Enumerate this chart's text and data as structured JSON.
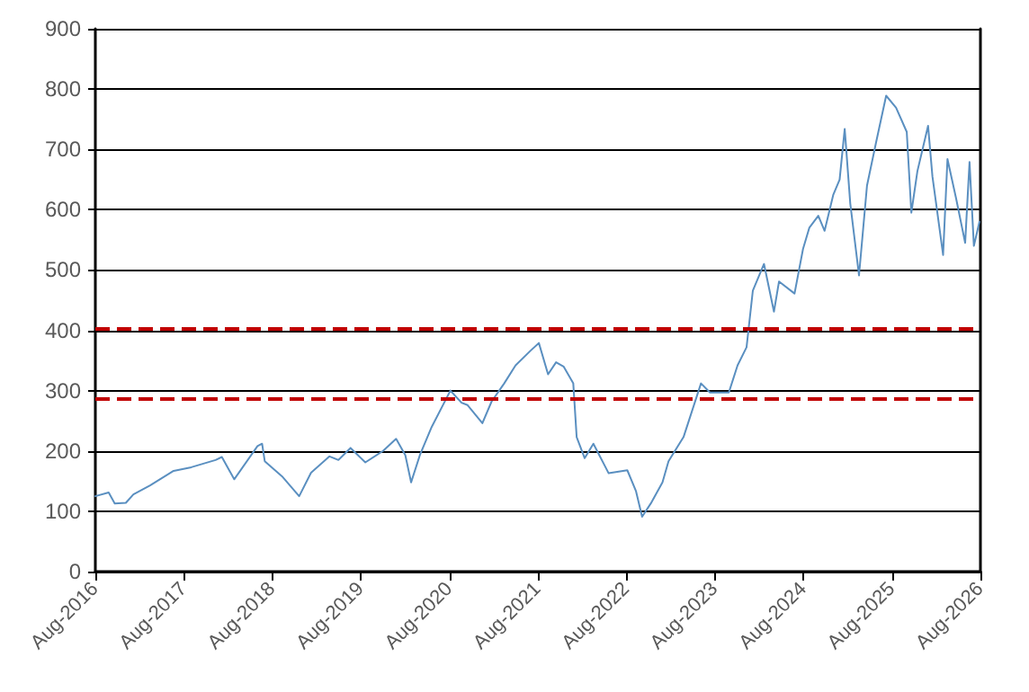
{
  "chart_data": {
    "type": "line",
    "xlim": [
      "2016-08-01",
      "2026-08-01"
    ],
    "ylim": [
      0,
      900
    ],
    "xticks": [
      {
        "value": "2016-08-01",
        "label": "Aug-2016"
      },
      {
        "value": "2017-08-01",
        "label": "Aug-2017"
      },
      {
        "value": "2018-08-01",
        "label": "Aug-2018"
      },
      {
        "value": "2019-08-01",
        "label": "Aug-2019"
      },
      {
        "value": "2020-08-01",
        "label": "Aug-2020"
      },
      {
        "value": "2021-08-01",
        "label": "Aug-2021"
      },
      {
        "value": "2022-08-01",
        "label": "Aug-2022"
      },
      {
        "value": "2023-08-01",
        "label": "Aug-2023"
      },
      {
        "value": "2024-08-01",
        "label": "Aug-2024"
      },
      {
        "value": "2025-08-01",
        "label": "Aug-2025"
      },
      {
        "value": "2026-08-01",
        "label": "Aug-2026"
      }
    ],
    "yticks": [
      0,
      100,
      200,
      300,
      400,
      500,
      600,
      700,
      800,
      900
    ],
    "grid": "y",
    "marker": "none",
    "line_style": "solid",
    "ref_lines": [
      {
        "axis": "y",
        "value": 403,
        "color": "#c00000",
        "line_style": "dashed"
      },
      {
        "axis": "y",
        "value": 288,
        "color": "#c00000",
        "line_style": "dashed"
      }
    ],
    "x": [
      "2016-08-01",
      "2016-09-25",
      "2016-10-20",
      "2016-12-05",
      "2017-01-05",
      "2017-03-15",
      "2017-06-20",
      "2017-09-01",
      "2017-12-10",
      "2018-01-05",
      "2018-02-25",
      "2018-06-01",
      "2018-06-20",
      "2018-07-01",
      "2018-09-10",
      "2018-11-20",
      "2019-01-08",
      "2019-03-25",
      "2019-05-01",
      "2019-06-20",
      "2019-08-20",
      "2019-11-01",
      "2019-12-25",
      "2020-02-01",
      "2020-02-25",
      "2020-04-01",
      "2020-05-20",
      "2020-08-05",
      "2020-09-20",
      "2020-10-15",
      "2020-12-15",
      "2021-01-22",
      "2021-03-15",
      "2021-05-01",
      "2021-07-01",
      "2021-08-05",
      "2021-09-12",
      "2021-10-15",
      "2021-11-15",
      "2021-12-25",
      "2022-01-08",
      "2022-02-10",
      "2022-03-18",
      "2022-05-20",
      "2022-08-05",
      "2022-09-10",
      "2022-10-05",
      "2022-11-10",
      "2022-12-28",
      "2023-01-22",
      "2023-03-25",
      "2023-06-05",
      "2023-07-12",
      "2023-09-28",
      "2023-11-03",
      "2023-12-10",
      "2024-01-05",
      "2024-02-20",
      "2024-04-01",
      "2024-04-22",
      "2024-06-25",
      "2024-07-30",
      "2024-08-25",
      "2024-10-01",
      "2024-10-27",
      "2024-12-02",
      "2024-12-28",
      "2025-01-18",
      "2025-02-10",
      "2025-03-18",
      "2025-04-20",
      "2025-05-26",
      "2025-07-08",
      "2025-08-18",
      "2025-10-01",
      "2025-10-20",
      "2025-11-14",
      "2025-12-28",
      "2026-01-15",
      "2026-02-28",
      "2026-03-18",
      "2026-04-22",
      "2026-05-30",
      "2026-06-17",
      "2026-07-05",
      "2026-07-28"
    ],
    "series": [
      {
        "color": "#5a8fc0",
        "values": [
          125,
          131,
          113,
          114,
          128,
          143,
          167,
          173,
          185,
          190,
          153,
          208,
          212,
          183,
          158,
          125,
          164,
          191,
          185,
          205,
          181,
          200,
          220,
          193,
          148,
          193,
          240,
          300,
          280,
          276,
          246,
          282,
          312,
          342,
          366,
          379,
          327,
          347,
          340,
          312,
          223,
          188,
          212,
          163,
          168,
          133,
          91,
          113,
          148,
          183,
          223,
          312,
          297,
          297,
          342,
          372,
          466,
          510,
          431,
          481,
          461,
          535,
          570,
          590,
          565,
          625,
          650,
          734,
          610,
          491,
          640,
          709,
          789,
          769,
          729,
          595,
          664,
          739,
          655,
          525,
          684,
          620,
          545,
          679,
          540,
          580
        ]
      }
    ]
  }
}
